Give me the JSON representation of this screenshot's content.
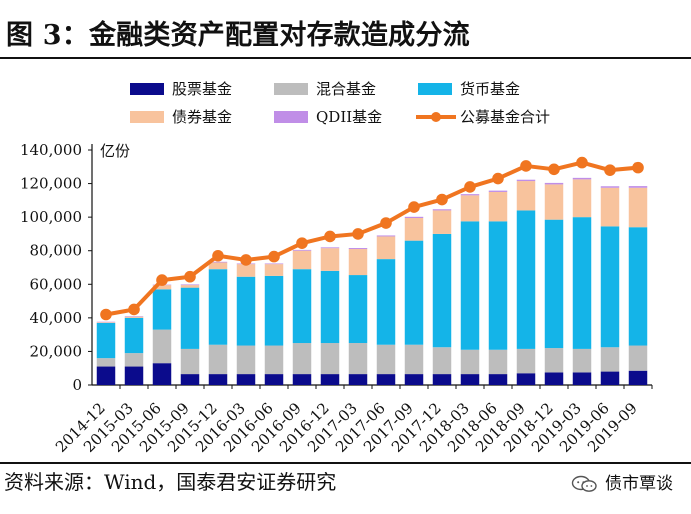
{
  "page": {
    "title": "图 3：金融类资产配置对存款造成分流",
    "source": "资料来源：Wind，国泰君安证券研究",
    "watermark": "债市覃谈"
  },
  "chart_data": {
    "type": "bar",
    "title": "图 3：金融类资产配置对存款造成分流",
    "ylabel": "亿份",
    "ylim": [
      0,
      140000
    ],
    "yticks": [
      0,
      20000,
      40000,
      60000,
      80000,
      100000,
      120000,
      140000
    ],
    "ytick_labels": [
      "0",
      "20,000",
      "40,000",
      "60,000",
      "80,000",
      "100,000",
      "120,000",
      "140,000"
    ],
    "grid": false,
    "legend_position": "top",
    "categories": [
      "2014-12",
      "2015-03",
      "2015-06",
      "2015-09",
      "2015-12",
      "2016-03",
      "2016-06",
      "2016-09",
      "2016-12",
      "2017-03",
      "2017-06",
      "2017-09",
      "2017-12",
      "2018-03",
      "2018-06",
      "2018-09",
      "2018-12",
      "2019-03",
      "2019-06",
      "2019-09"
    ],
    "series": [
      {
        "name": "股票基金",
        "type": "stacked-bar",
        "color": "#0b0b8c",
        "values": [
          11000,
          11000,
          13000,
          6500,
          6500,
          6500,
          6500,
          6500,
          6500,
          6500,
          6500,
          6500,
          6500,
          6500,
          6500,
          7000,
          7500,
          7500,
          8000,
          8500
        ]
      },
      {
        "name": "混合基金",
        "type": "stacked-bar",
        "color": "#bdbdbd",
        "values": [
          5000,
          8000,
          20000,
          15000,
          17500,
          17000,
          17000,
          18500,
          18500,
          18500,
          17500,
          17500,
          16000,
          14500,
          14500,
          14500,
          14500,
          14000,
          14500,
          15000
        ]
      },
      {
        "name": "货币基金",
        "type": "stacked-bar",
        "color": "#14b4e8",
        "values": [
          21000,
          21000,
          24000,
          36500,
          45000,
          41000,
          41500,
          44000,
          43000,
          40500,
          51000,
          62000,
          67500,
          76500,
          76500,
          82500,
          76500,
          78500,
          72000,
          70500
        ]
      },
      {
        "name": "债券基金",
        "type": "stacked-bar",
        "color": "#f8c39d",
        "values": [
          400,
          700,
          2500,
          1500,
          4000,
          7500,
          7000,
          11000,
          13500,
          15500,
          13500,
          13500,
          14000,
          15500,
          17500,
          17500,
          21000,
          22500,
          23000,
          23500
        ]
      },
      {
        "name": "QDII基金",
        "type": "stacked-bar",
        "color": "#c08ee7",
        "values": [
          300,
          300,
          300,
          400,
          400,
          400,
          400,
          500,
          500,
          600,
          600,
          700,
          700,
          700,
          800,
          800,
          900,
          900,
          900,
          1000
        ]
      },
      {
        "name": "公募基金合计",
        "type": "line",
        "color": "#f07520",
        "values": [
          42000,
          45000,
          62500,
          64500,
          77000,
          74500,
          76500,
          84500,
          88500,
          90000,
          96500,
          106000,
          110500,
          118000,
          123000,
          130500,
          128500,
          132500,
          128000,
          129500
        ]
      }
    ]
  }
}
